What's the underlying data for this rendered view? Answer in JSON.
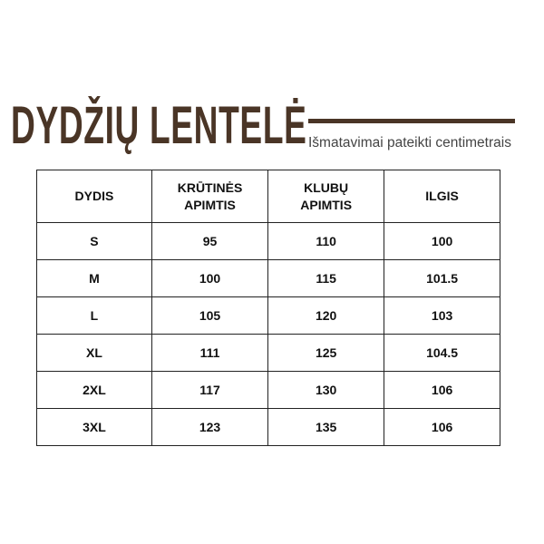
{
  "title": "DYDŽIŲ LENTELĖ",
  "subtitle": "Išmatavimai pateikti centimetrais",
  "accent_color": "#4a3526",
  "table": {
    "headers": [
      [
        "DYDIS"
      ],
      [
        "KRŪTINĖS",
        "APIMTIS"
      ],
      [
        "KLUBŲ",
        "APIMTIS"
      ],
      [
        "ILGIS"
      ]
    ],
    "rows": [
      [
        "S",
        "95",
        "110",
        "100"
      ],
      [
        "M",
        "100",
        "115",
        "101.5"
      ],
      [
        "L",
        "105",
        "120",
        "103"
      ],
      [
        "XL",
        "111",
        "125",
        "104.5"
      ],
      [
        "2XL",
        "117",
        "130",
        "106"
      ],
      [
        "3XL",
        "123",
        "135",
        "106"
      ]
    ]
  }
}
